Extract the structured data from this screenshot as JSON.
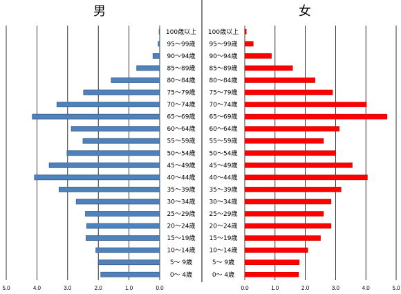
{
  "chart_data": [
    {
      "type": "bar",
      "orientation": "horizontal",
      "direction": "right-to-left",
      "title": "男",
      "xlim": [
        5.0,
        0.0
      ],
      "xticks": [
        "5.0",
        "4.0",
        "3.0",
        "2.0",
        "1.0",
        "0.0"
      ],
      "grid": true,
      "bar_color": "#4f81bd",
      "categories": [
        "100歳以上",
        "95～99歳",
        "90～94歳",
        "85～89歳",
        "80～84歳",
        "75～79歳",
        "70～74歳",
        "65～69歳",
        "60～64歳",
        "55～59歳",
        "50～54歳",
        "45～49歳",
        "40～44歳",
        "35～39歳",
        "30～34歳",
        "25～29歳",
        "20～24歳",
        "15～19歳",
        "10～14歳",
        "5～ 9歳",
        "0～ 4歳"
      ],
      "values": [
        0.02,
        0.05,
        0.22,
        0.75,
        1.58,
        2.48,
        3.35,
        4.15,
        2.88,
        2.5,
        3.02,
        3.6,
        4.08,
        3.28,
        2.72,
        2.42,
        2.38,
        2.4,
        2.08,
        2.0,
        1.92
      ]
    },
    {
      "type": "bar",
      "orientation": "horizontal",
      "direction": "left-to-right",
      "title": "女",
      "xlim": [
        0.0,
        5.0
      ],
      "xticks": [
        "0.0",
        "1.0",
        "2.0",
        "3.0",
        "4.0",
        "5.0"
      ],
      "grid": true,
      "bar_color": "#ff0000",
      "categories": [
        "100歳以上",
        "95～99歳",
        "90～94歳",
        "85～89歳",
        "80～84歳",
        "75～79歳",
        "70～74歳",
        "65～69歳",
        "60～64歳",
        "55～59歳",
        "50～54歳",
        "45～49歳",
        "40～44歳",
        "35～39歳",
        "30～34歳",
        "25～29歳",
        "20～24歳",
        "15～19歳",
        "10～14歳",
        "5～ 9歳",
        "0～ 4歳"
      ],
      "values": [
        0.05,
        0.28,
        0.88,
        1.58,
        2.32,
        2.9,
        4.02,
        4.7,
        3.12,
        2.6,
        3.0,
        3.55,
        4.05,
        3.18,
        2.85,
        2.6,
        2.85,
        2.5,
        2.08,
        1.8,
        1.78
      ]
    }
  ]
}
